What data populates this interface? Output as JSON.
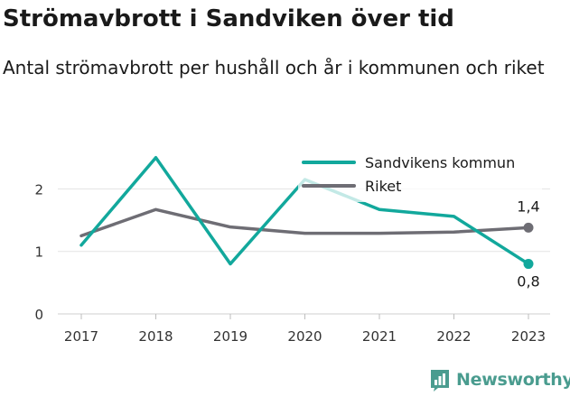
{
  "header": {
    "title": "Strömavbrott i Sandviken över tid",
    "subtitle": "Antal strömavbrott per hushåll och år i kommunen och riket"
  },
  "brand": {
    "name": "Newsworthy",
    "color": "#4a9c8f",
    "icon": "bar-chart-icon"
  },
  "chart_data": {
    "type": "line",
    "x": [
      "2017",
      "2018",
      "2019",
      "2020",
      "2021",
      "2022",
      "2023"
    ],
    "series": [
      {
        "name": "Sandvikens kommun",
        "color": "#12a89c",
        "values": [
          1.1,
          2.5,
          0.8,
          2.15,
          1.67,
          1.56,
          0.8
        ]
      },
      {
        "name": "Riket",
        "color": "#6e6d74",
        "values": [
          1.25,
          1.67,
          1.39,
          1.29,
          1.29,
          1.31,
          1.38
        ]
      }
    ],
    "end_labels": {
      "Sandvikens kommun": "0,8",
      "Riket": "1,4"
    },
    "y_ticks": [
      "0",
      "1",
      "2"
    ],
    "ylim": [
      0,
      2.5
    ],
    "grid": true,
    "legend_position": "top-right",
    "xlabel": "",
    "ylabel": ""
  }
}
